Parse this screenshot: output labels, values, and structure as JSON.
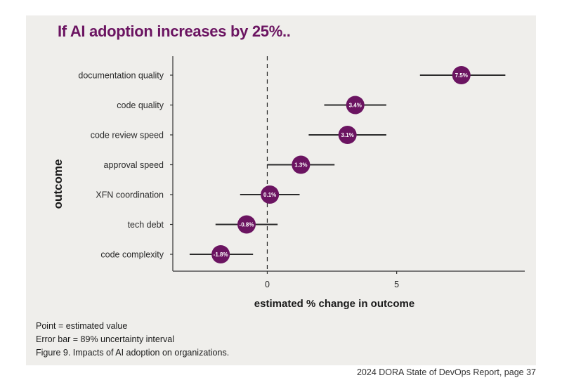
{
  "header": {
    "title": "If AI adoption increases by 25%.."
  },
  "notes": [
    "Point = estimated value",
    "Error bar = 89% uncertainty interval",
    "Figure 9. Impacts of AI adoption on organizations."
  ],
  "footer": "2024 DORA State of DevOps Report, page 37",
  "colors": {
    "point": "#6b1461",
    "bar": "#2b2b2b",
    "panel": "#efeeeb",
    "title": "#6b1461"
  },
  "chart_data": {
    "type": "scatter",
    "subtype": "point-range",
    "title": "If AI adoption increases by 25%..",
    "xlabel": "estimated % change in outcome",
    "ylabel": "outcome",
    "xlim": [
      -3.65,
      9.95
    ],
    "xticks": [
      0,
      5
    ],
    "reference_line": {
      "x": 0,
      "style": "dashed"
    },
    "grid": false,
    "legend": "none",
    "categories": [
      "documentation quality",
      "code quality",
      "code review speed",
      "approval speed",
      "XFN coordination",
      "tech debt",
      "code complexity"
    ],
    "points": [
      {
        "category": "documentation quality",
        "estimate": 7.5,
        "lower": 5.9,
        "upper": 9.2,
        "label": "7.5%"
      },
      {
        "category": "code quality",
        "estimate": 3.4,
        "lower": 2.2,
        "upper": 4.6,
        "label": "3.4%"
      },
      {
        "category": "code review speed",
        "estimate": 3.1,
        "lower": 1.6,
        "upper": 4.6,
        "label": "3.1%"
      },
      {
        "category": "approval speed",
        "estimate": 1.3,
        "lower": 0.0,
        "upper": 2.6,
        "label": "1.3%"
      },
      {
        "category": "XFN coordination",
        "estimate": 0.1,
        "lower": -1.05,
        "upper": 1.25,
        "label": "0.1%"
      },
      {
        "category": "tech debt",
        "estimate": -0.8,
        "lower": -2.0,
        "upper": 0.4,
        "label": "-0.8%"
      },
      {
        "category": "code complexity",
        "estimate": -1.8,
        "lower": -3.0,
        "upper": -0.55,
        "label": "-1.8%"
      }
    ]
  }
}
